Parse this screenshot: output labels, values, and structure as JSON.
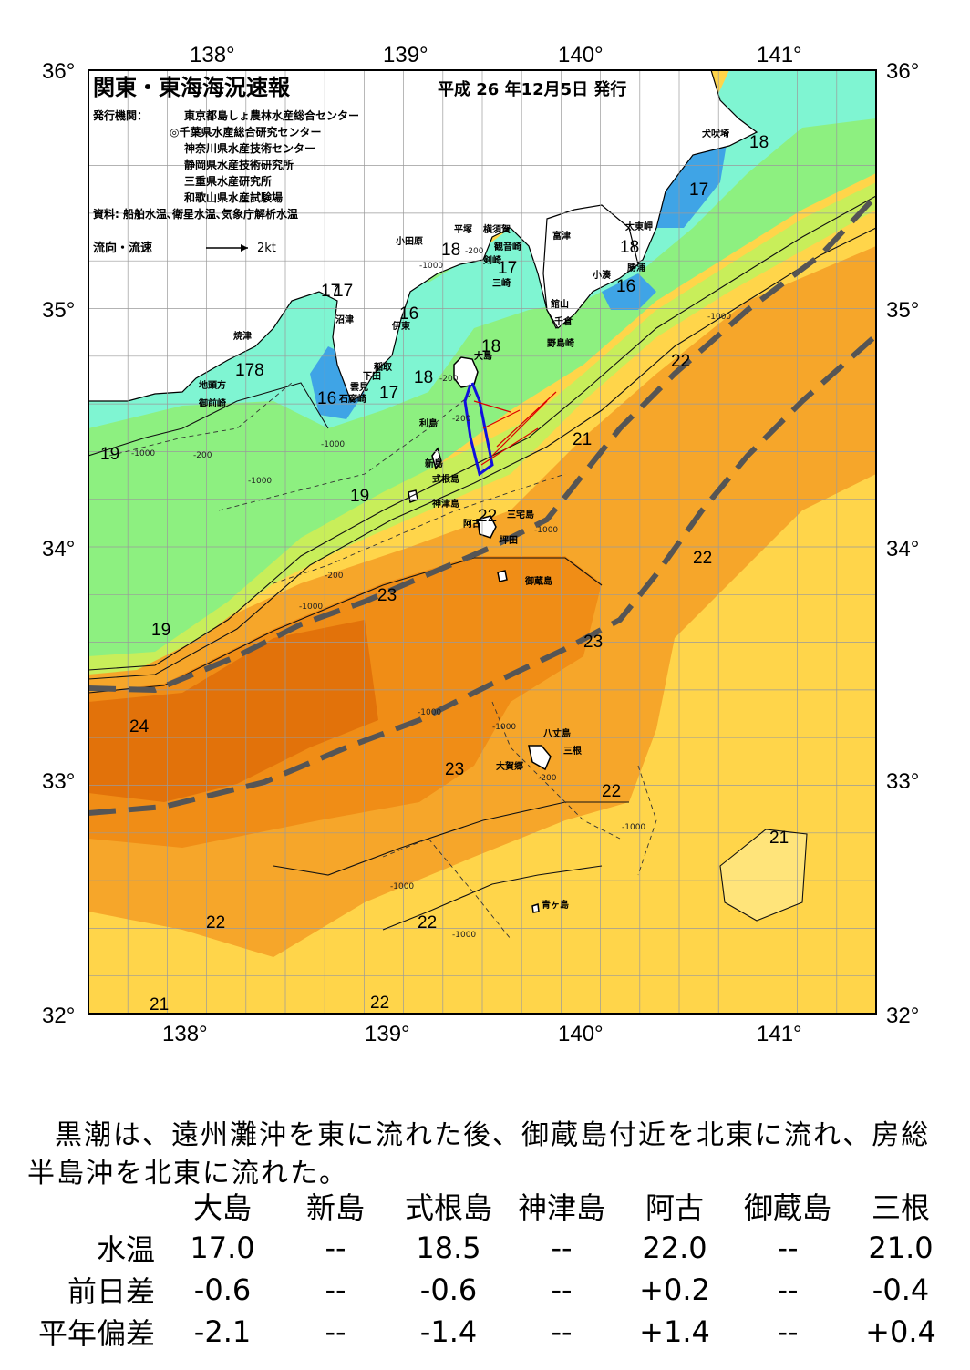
{
  "header": {
    "title": "関東・東海海況速報",
    "date": "平成 26 年12月5日 発行",
    "issuer_label": "発行機関：",
    "issuers": [
      "東京都島しょ農林水産総合センター",
      "◎千葉県水産総合研究センター",
      "神奈川県水産技術センター",
      "静岡県水産技術研究所",
      "三重県水産研究所",
      "和歌山県水産試験場"
    ],
    "source": "資料: 船舶水温､衛星水温､気象庁解析水温",
    "flow_label": "流向・流速",
    "flow_scale": "2kt"
  },
  "axes": {
    "lon_labels": [
      "138°",
      "139°",
      "140°",
      "141°"
    ],
    "lat_labels": [
      "36°",
      "35°",
      "34°",
      "33°",
      "32°"
    ]
  },
  "map": {
    "temps": [
      "18",
      "17",
      "18",
      "18",
      "17",
      "16",
      "17",
      "17",
      "16",
      "178",
      "18",
      "16",
      "17",
      "18",
      "22",
      "21",
      "19",
      "19",
      "22",
      "22",
      "23",
      "22",
      "19",
      "23",
      "24",
      "23",
      "22",
      "21",
      "22",
      "22",
      "21",
      "22"
    ],
    "depths": [
      "-200",
      "-1000",
      "-1000",
      "-200",
      "-200",
      "-1000",
      "-1000",
      "-200",
      "-1000",
      "-200",
      "-1000",
      "-1000",
      "-1000",
      "-1000",
      "-200",
      "-1000",
      "-1000",
      "-1000"
    ],
    "places": [
      "犬吠埼",
      "太東岬",
      "勝浦",
      "小湊",
      "平塚",
      "横須賀",
      "小田原",
      "観音崎",
      "剣崎",
      "三崎",
      "富津",
      "館山",
      "千倉",
      "野島崎",
      "沼津",
      "伊東",
      "焼津",
      "稲取",
      "下田",
      "雲見",
      "石廊崎",
      "御前崎",
      "地頭方",
      "大島",
      "利島",
      "新島",
      "式根島",
      "神津島",
      "三宅島",
      "阿古",
      "坪田",
      "御蔵島",
      "八丈島",
      "三根",
      "大賀郷",
      "青ヶ島"
    ],
    "colors": {
      "cold": "#3fa4e6",
      "cool": "#7ff5d2",
      "mild": "#8df080",
      "warm": "#ffd54a",
      "hot": "#f39a1d",
      "hotter": "#e97a0c",
      "kuroshio": "#555555"
    }
  },
  "description": "黒潮は、遠州灘沖を東に流れた後、御蔵島付近を北東に流れ、房総半島沖を北東に流れた。",
  "table": {
    "columns": [
      "大島",
      "新島",
      "式根島",
      "神津島",
      "阿古",
      "御蔵島",
      "三根"
    ],
    "rows": [
      {
        "label": "水温",
        "values": [
          "17.0",
          "--",
          "18.5",
          "--",
          "22.0",
          "--",
          "21.0"
        ]
      },
      {
        "label": "前日差",
        "values": [
          "-0.6",
          "--",
          "-0.6",
          "--",
          "+0.2",
          "--",
          "-0.4"
        ]
      },
      {
        "label": "平年偏差",
        "values": [
          "-2.1",
          "--",
          "-1.4",
          "--",
          "+1.4",
          "--",
          "+0.4"
        ]
      }
    ]
  }
}
